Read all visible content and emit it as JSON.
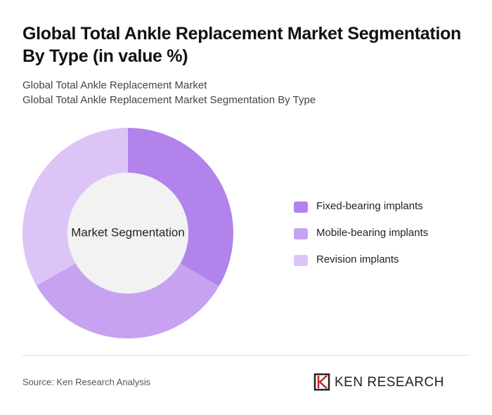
{
  "chart_data": {
    "type": "donut",
    "title": "Global Total Ankle Replacement Market Segmentation By Type (in value %)",
    "subtitle": [
      "Global Total Ankle Replacement Market",
      "Global Total Ankle Replacement Market Segmentation By Type"
    ],
    "center_label": "Market Segmentation",
    "categories": [
      "Fixed-bearing implants",
      "Mobile-bearing implants",
      "Revision implants"
    ],
    "values": [
      33.4,
      33.3,
      33.3
    ],
    "colors": [
      "#b283ea",
      "#c7a2f1",
      "#dcc5f6"
    ],
    "source": "Source: Ken Research Analysis",
    "brand": "KEN RESEARCH"
  }
}
